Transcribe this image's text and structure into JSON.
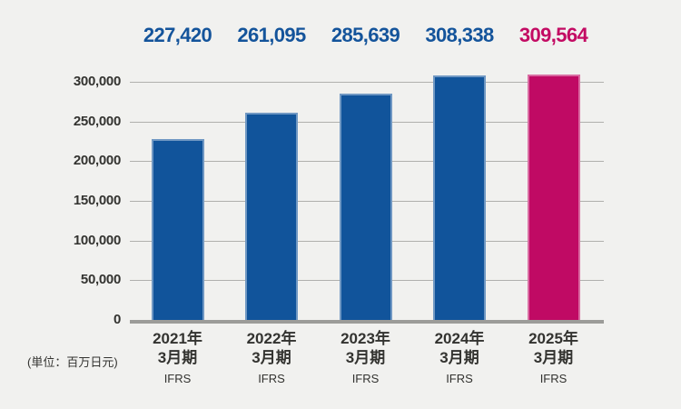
{
  "chart_data": {
    "type": "bar",
    "title": "",
    "unit_label": "(単位：百万日元)",
    "categories": [
      {
        "line1": "2021年",
        "line2": "3月期",
        "standard": "IFRS"
      },
      {
        "line1": "2022年",
        "line2": "3月期",
        "standard": "IFRS"
      },
      {
        "line1": "2023年",
        "line2": "3月期",
        "standard": "IFRS"
      },
      {
        "line1": "2024年",
        "line2": "3月期",
        "standard": "IFRS"
      },
      {
        "line1": "2025年",
        "line2": "3月期",
        "standard": "IFRS"
      }
    ],
    "values": [
      227420,
      261095,
      285639,
      308338,
      309564
    ],
    "value_labels": [
      "227,420",
      "261,095",
      "285,639",
      "308,338",
      "309,564"
    ],
    "highlight_index": 4,
    "ylim": [
      0,
      300000
    ],
    "ytick_step": 50000,
    "ytick_labels": [
      "300,000",
      "250,000",
      "200,000",
      "150,000",
      "100,000",
      "50,000",
      "0"
    ],
    "grid": true,
    "legend": "none",
    "colors": {
      "background": "#F1F1EF",
      "bar": "#11549B",
      "bar_highlight": "#C00A64",
      "value_label": "#14549B",
      "value_label_highlight": "#C30B63",
      "grid_line": "#B0B0AD",
      "axis_line": "#9C9C99",
      "text": "#333330"
    }
  }
}
